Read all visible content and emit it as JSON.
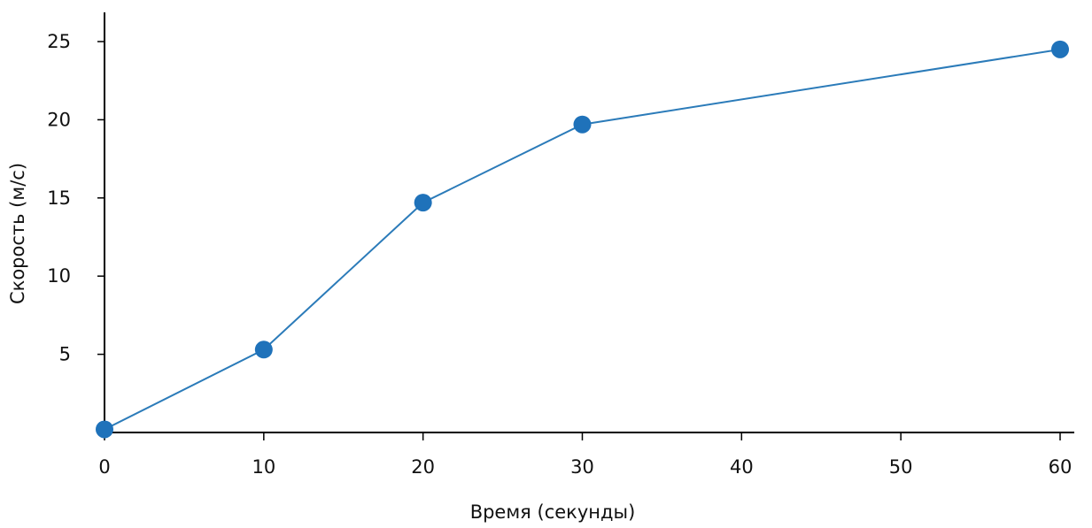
{
  "chart_data": {
    "type": "line",
    "xlabel": "Время (секунды)",
    "ylabel": "Скорость (м/с)",
    "x": [
      0,
      10,
      20,
      30,
      60
    ],
    "series": [
      {
        "values": [
          0.2,
          5.3,
          14.7,
          19.7,
          24.5
        ]
      }
    ],
    "x_ticks": [
      0,
      10,
      20,
      30,
      40,
      50,
      60
    ],
    "y_ticks": [
      5,
      10,
      15,
      20,
      25
    ],
    "xlim": [
      0,
      60
    ],
    "ylim": [
      0,
      25
    ],
    "line_color": "#2b7bb9",
    "marker_color": "#1f72ba",
    "axis_color": "#000000",
    "grid": false,
    "legend": "none"
  }
}
